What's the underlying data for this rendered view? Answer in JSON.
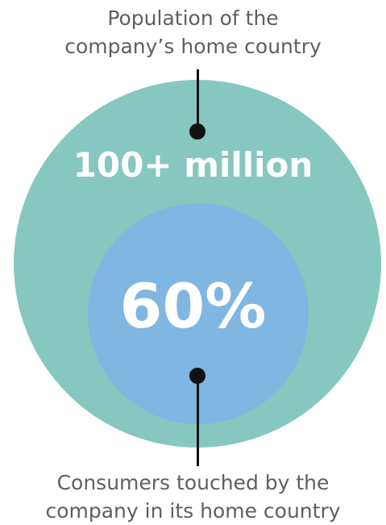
{
  "top_caption": {
    "line1": "Population of the",
    "line2": "company’s home country"
  },
  "outer_circle": {
    "value": "100+ million",
    "color": "#86c8bf"
  },
  "inner_circle": {
    "value": "60%",
    "color": "#7fb6e2"
  },
  "bottom_caption": {
    "line1": "Consumers touched by the",
    "line2": "company in its home country"
  },
  "colors": {
    "caption_text": "#5f5f5f",
    "value_text": "#ffffff",
    "connector": "#111111"
  }
}
